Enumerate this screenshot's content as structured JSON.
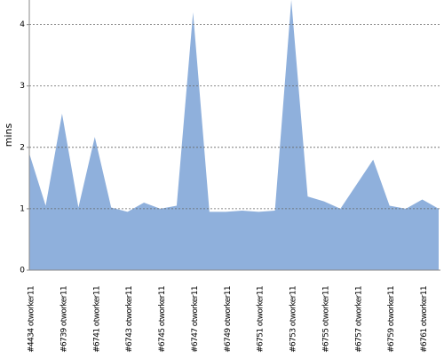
{
  "chart_data": {
    "type": "area",
    "y_label": "mins",
    "categories": [
      "#4434 otworker11",
      null,
      "#6739 otworker11",
      null,
      "#6741 otworker11",
      null,
      "#6743 otworker11",
      null,
      "#6745 otworker11",
      null,
      "#6747 otworker11",
      null,
      "#6749 otworker11",
      null,
      "#6751 otworker11",
      null,
      "#6753 otworker11",
      null,
      "#6755 otworker11",
      null,
      "#6757 otworker11",
      null,
      "#6759 otworker11",
      null,
      "#6761 otworker11",
      null
    ],
    "values": [
      1.9,
      1.05,
      2.55,
      1.02,
      2.17,
      1.02,
      0.95,
      1.1,
      1.0,
      1.05,
      4.2,
      0.95,
      0.95,
      0.97,
      0.95,
      0.97,
      4.4,
      1.2,
      1.12,
      1.0,
      1.4,
      1.8,
      1.05,
      1.0,
      1.15,
      1.0
    ],
    "color": "#8fb0dc",
    "ylim": [
      0,
      4.4
    ],
    "yticks": [
      0,
      1,
      2,
      3,
      4
    ],
    "grid": true
  }
}
